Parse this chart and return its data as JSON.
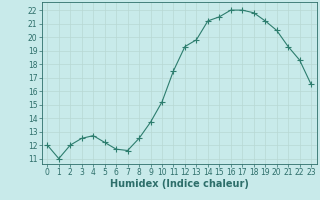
{
  "x": [
    0,
    1,
    2,
    3,
    4,
    5,
    6,
    7,
    8,
    9,
    10,
    11,
    12,
    13,
    14,
    15,
    16,
    17,
    18,
    19,
    20,
    21,
    22,
    23
  ],
  "y": [
    12,
    11,
    12,
    12.5,
    12.7,
    12.2,
    11.7,
    11.6,
    12.5,
    13.7,
    15.2,
    17.5,
    19.3,
    19.8,
    21.2,
    21.5,
    22.0,
    22.0,
    21.8,
    21.2,
    20.5,
    19.3,
    18.3,
    16.5
  ],
  "line_color": "#2d7d6e",
  "bg_color": "#c8eaea",
  "grid_color": "#b8d8d4",
  "xlabel": "Humidex (Indice chaleur)",
  "ylim": [
    10.6,
    22.6
  ],
  "xlim": [
    -0.5,
    23.5
  ],
  "yticks": [
    11,
    12,
    13,
    14,
    15,
    16,
    17,
    18,
    19,
    20,
    21,
    22
  ],
  "xticks": [
    0,
    1,
    2,
    3,
    4,
    5,
    6,
    7,
    8,
    9,
    10,
    11,
    12,
    13,
    14,
    15,
    16,
    17,
    18,
    19,
    20,
    21,
    22,
    23
  ],
  "marker": "+",
  "markersize": 4,
  "linewidth": 0.8,
  "font_color": "#2d6e6a",
  "tick_fontsize": 5.5,
  "xlabel_fontsize": 7
}
